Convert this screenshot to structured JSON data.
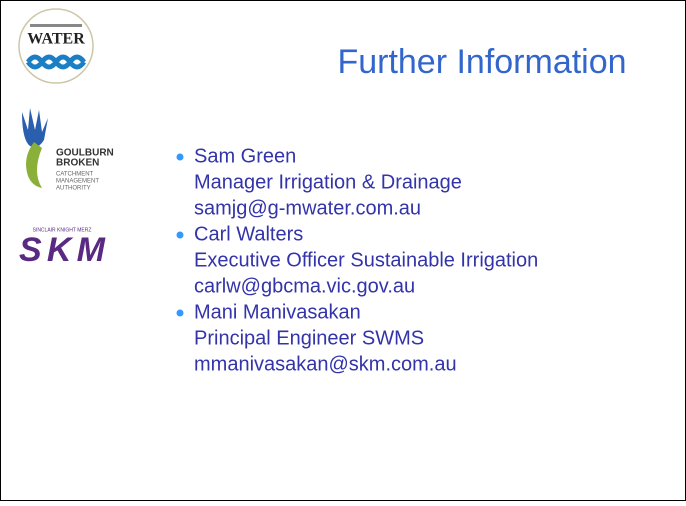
{
  "logos": {
    "water": {
      "name": "WATER"
    },
    "gbcma": {
      "lines": [
        "GOULBURN",
        "BROKEN"
      ],
      "sub": [
        "CATCHMENT",
        "MANAGEMENT",
        "AUTHORITY"
      ]
    },
    "skm": {
      "name": "SKM",
      "tagline": "SINCLAIR KNIGHT MERZ"
    }
  },
  "title": "Further Information",
  "contacts": [
    {
      "name": "Sam Green",
      "role": "Manager Irrigation & Drainage",
      "email": "samjg@g-mwater.com.au"
    },
    {
      "name": "Carl Walters",
      "role": "Executive Officer Sustainable Irrigation",
      "email": "carlw@gbcma.vic.gov.au"
    },
    {
      "name": "Mani Manivasakan",
      "role": "Principal Engineer SWMS",
      "email": "mmanivasakan@skm.com.au"
    }
  ]
}
